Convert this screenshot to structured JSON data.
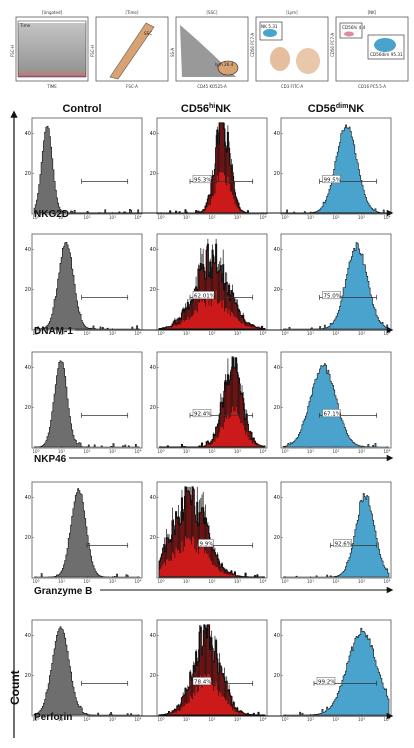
{
  "column_headers": [
    "Control",
    "CD56hiNK",
    "CD56dimNK"
  ],
  "column_header_parts": {
    "control": {
      "main": "Control"
    },
    "hi": {
      "pre": "CD56",
      "sup": "hi",
      "post": "NK"
    },
    "dim": {
      "pre": "CD56",
      "sup": "dim",
      "post": "NK"
    }
  },
  "y_axis_label": "Count",
  "colors": {
    "control": "#6e6e6e",
    "hi": "#cc1a1a",
    "dim": "#4aa3cc",
    "gate_fill": "#d9a273"
  },
  "gating_strip": {
    "panels": [
      {
        "title": "[Ungated]",
        "xlabel": "TIME",
        "ylabel": "FSC-H",
        "gate_label": "Time"
      },
      {
        "title": "[Time]",
        "xlabel": "FSC-A",
        "ylabel": "FSC-H",
        "gate_label": "SSC"
      },
      {
        "title": "[SSC]",
        "xlabel": "CD45 KO525-A",
        "ylabel": "SS-A",
        "gate_label": "lym 26.4"
      },
      {
        "title": "[Lym]",
        "xlabel": "CD3 FITC-A",
        "ylabel": "CD56 PC7-A",
        "gate_label": "NK 5.31"
      },
      {
        "title": "[NK]",
        "xlabel": "CD16 PC5.5-A",
        "ylabel": "CD56 PC7-A",
        "gate_label": "CD56hi 4.4",
        "gate_label_2": "CD56dim 95.31"
      }
    ]
  },
  "chart_data": [
    {
      "type": "histogram",
      "marker": "NKG2D",
      "ylim_labels": [
        "20",
        "40"
      ],
      "x_ticks": [
        "10^0",
        "10^1",
        "10^2",
        "10^3",
        "10^4"
      ],
      "populations": [
        {
          "name": "Control",
          "gate_pct": ""
        },
        {
          "name": "CD56hiNK",
          "gate_pct": "95.3%"
        },
        {
          "name": "CD56dimNK",
          "gate_pct": "99.5%"
        }
      ]
    },
    {
      "type": "histogram",
      "marker": "DNAM-1",
      "ylim_labels": [
        "20",
        "40"
      ],
      "x_ticks": [
        "10^0",
        "10^1",
        "10^2",
        "10^3",
        "10^4"
      ],
      "populations": [
        {
          "name": "Control",
          "gate_pct": ""
        },
        {
          "name": "CD56hiNK",
          "gate_pct": "62.01%"
        },
        {
          "name": "CD56dimNK",
          "gate_pct": "75.0%"
        }
      ]
    },
    {
      "type": "histogram",
      "marker": "NKP46",
      "ylim_labels": [
        "20",
        "40"
      ],
      "x_ticks": [
        "10^0",
        "10^1",
        "10^2",
        "10^3",
        "10^4"
      ],
      "populations": [
        {
          "name": "Control",
          "gate_pct": ""
        },
        {
          "name": "CD56hiNK",
          "gate_pct": "92.4%"
        },
        {
          "name": "CD56dimNK",
          "gate_pct": "67.1%"
        }
      ]
    },
    {
      "type": "histogram",
      "marker": "Granzyme B",
      "ylim_labels": [
        "20",
        "40"
      ],
      "x_ticks": [
        "10^0",
        "10^1",
        "10^2",
        "10^3",
        "10^4"
      ],
      "populations": [
        {
          "name": "Control",
          "gate_pct": ""
        },
        {
          "name": "CD56hiNK",
          "gate_pct": "9.9%"
        },
        {
          "name": "CD56dimNK",
          "gate_pct": "92.6%"
        }
      ]
    },
    {
      "type": "histogram",
      "marker": "Perforin",
      "ylim_labels": [
        "20",
        "40"
      ],
      "x_ticks": [
        "10^0",
        "10^1",
        "10^2",
        "10^3",
        "10^4"
      ],
      "populations": [
        {
          "name": "Control",
          "gate_pct": ""
        },
        {
          "name": "CD56hiNK",
          "gate_pct": "78.4%"
        },
        {
          "name": "CD56dimNK",
          "gate_pct": "99.2%"
        }
      ]
    }
  ]
}
